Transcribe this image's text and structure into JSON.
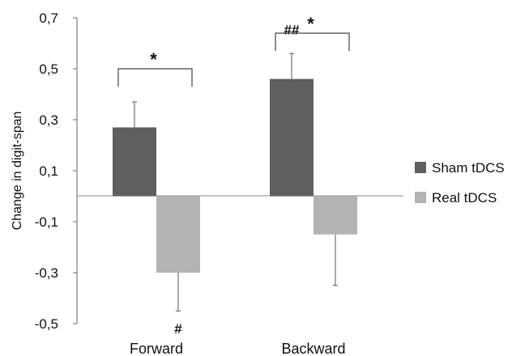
{
  "chart_data": {
    "type": "bar",
    "title": "",
    "xlabel": "",
    "ylabel": "Change in digit-span",
    "ylim": [
      -0.5,
      0.7
    ],
    "yticks": [
      "0,7",
      "0,5",
      "0,3",
      "0,1",
      "-0,1",
      "-0,3",
      "-0,5"
    ],
    "ytick_values": [
      0.7,
      0.5,
      0.3,
      0.1,
      -0.1,
      -0.3,
      -0.5
    ],
    "categories": [
      "Forward",
      "Backward"
    ],
    "series": [
      {
        "name": "Sham tDCS",
        "color": "#5f5f5f",
        "values": [
          0.27,
          0.46
        ],
        "error": [
          0.1,
          0.1
        ]
      },
      {
        "name": "Real tDCS",
        "color": "#b3b3b3",
        "values": [
          -0.3,
          -0.15
        ],
        "error": [
          0.15,
          0.2
        ]
      }
    ],
    "annotations": {
      "brackets": [
        {
          "category": "Forward",
          "label": "*"
        },
        {
          "category": "Backward",
          "label": "*"
        }
      ],
      "markers": [
        {
          "category": "Forward",
          "series": "Real tDCS",
          "label": "#"
        },
        {
          "category": "Backward",
          "series": "Sham tDCS",
          "label": "##"
        }
      ]
    },
    "legend_position": "right",
    "grid": false
  }
}
